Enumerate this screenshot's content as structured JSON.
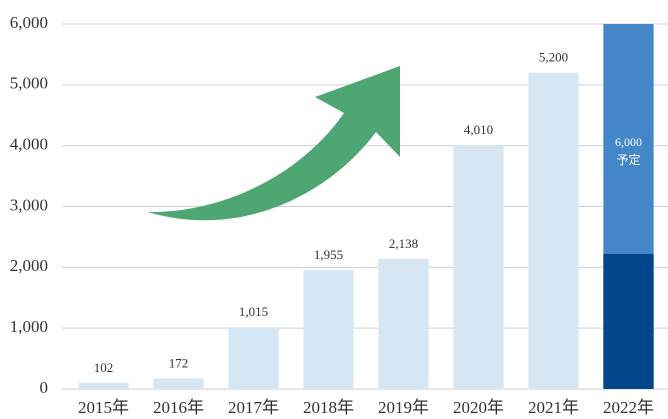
{
  "chart_data": {
    "type": "bar",
    "categories": [
      "2015年",
      "2016年",
      "2017年",
      "2018年",
      "2019年",
      "2020年",
      "2021年",
      "2022年"
    ],
    "values": [
      102,
      172,
      1015,
      1955,
      2138,
      4010,
      5200,
      6000
    ],
    "value_labels": [
      "102",
      "172",
      "1,015",
      "1,955",
      "2,138",
      "4,010",
      "5,200",
      "6,000"
    ],
    "colors": [
      "#d6e6f2",
      "#d6e6f2",
      "#d6e6f2",
      "#d6e6f2",
      "#d6e6f2",
      "#d6e6f2",
      "#d6e6f2",
      "#4387c9"
    ],
    "inner_values": [
      null,
      null,
      null,
      null,
      null,
      null,
      null,
      2220
    ],
    "inner_color": "#02468b",
    "forecast_label": "予定",
    "ylim": [
      0,
      6000
    ],
    "yticks": [
      0,
      {
        "value": 1000,
        "label": "1,000"
      },
      {
        "value": 2000,
        "label": "2,000"
      },
      {
        "value": 3000,
        "label": "3,000"
      },
      {
        "value": 4000,
        "label": "4,000"
      },
      {
        "value": 5000,
        "label": "5,000"
      },
      {
        "value": 6000,
        "label": "6,000"
      }
    ],
    "grid": true
  }
}
